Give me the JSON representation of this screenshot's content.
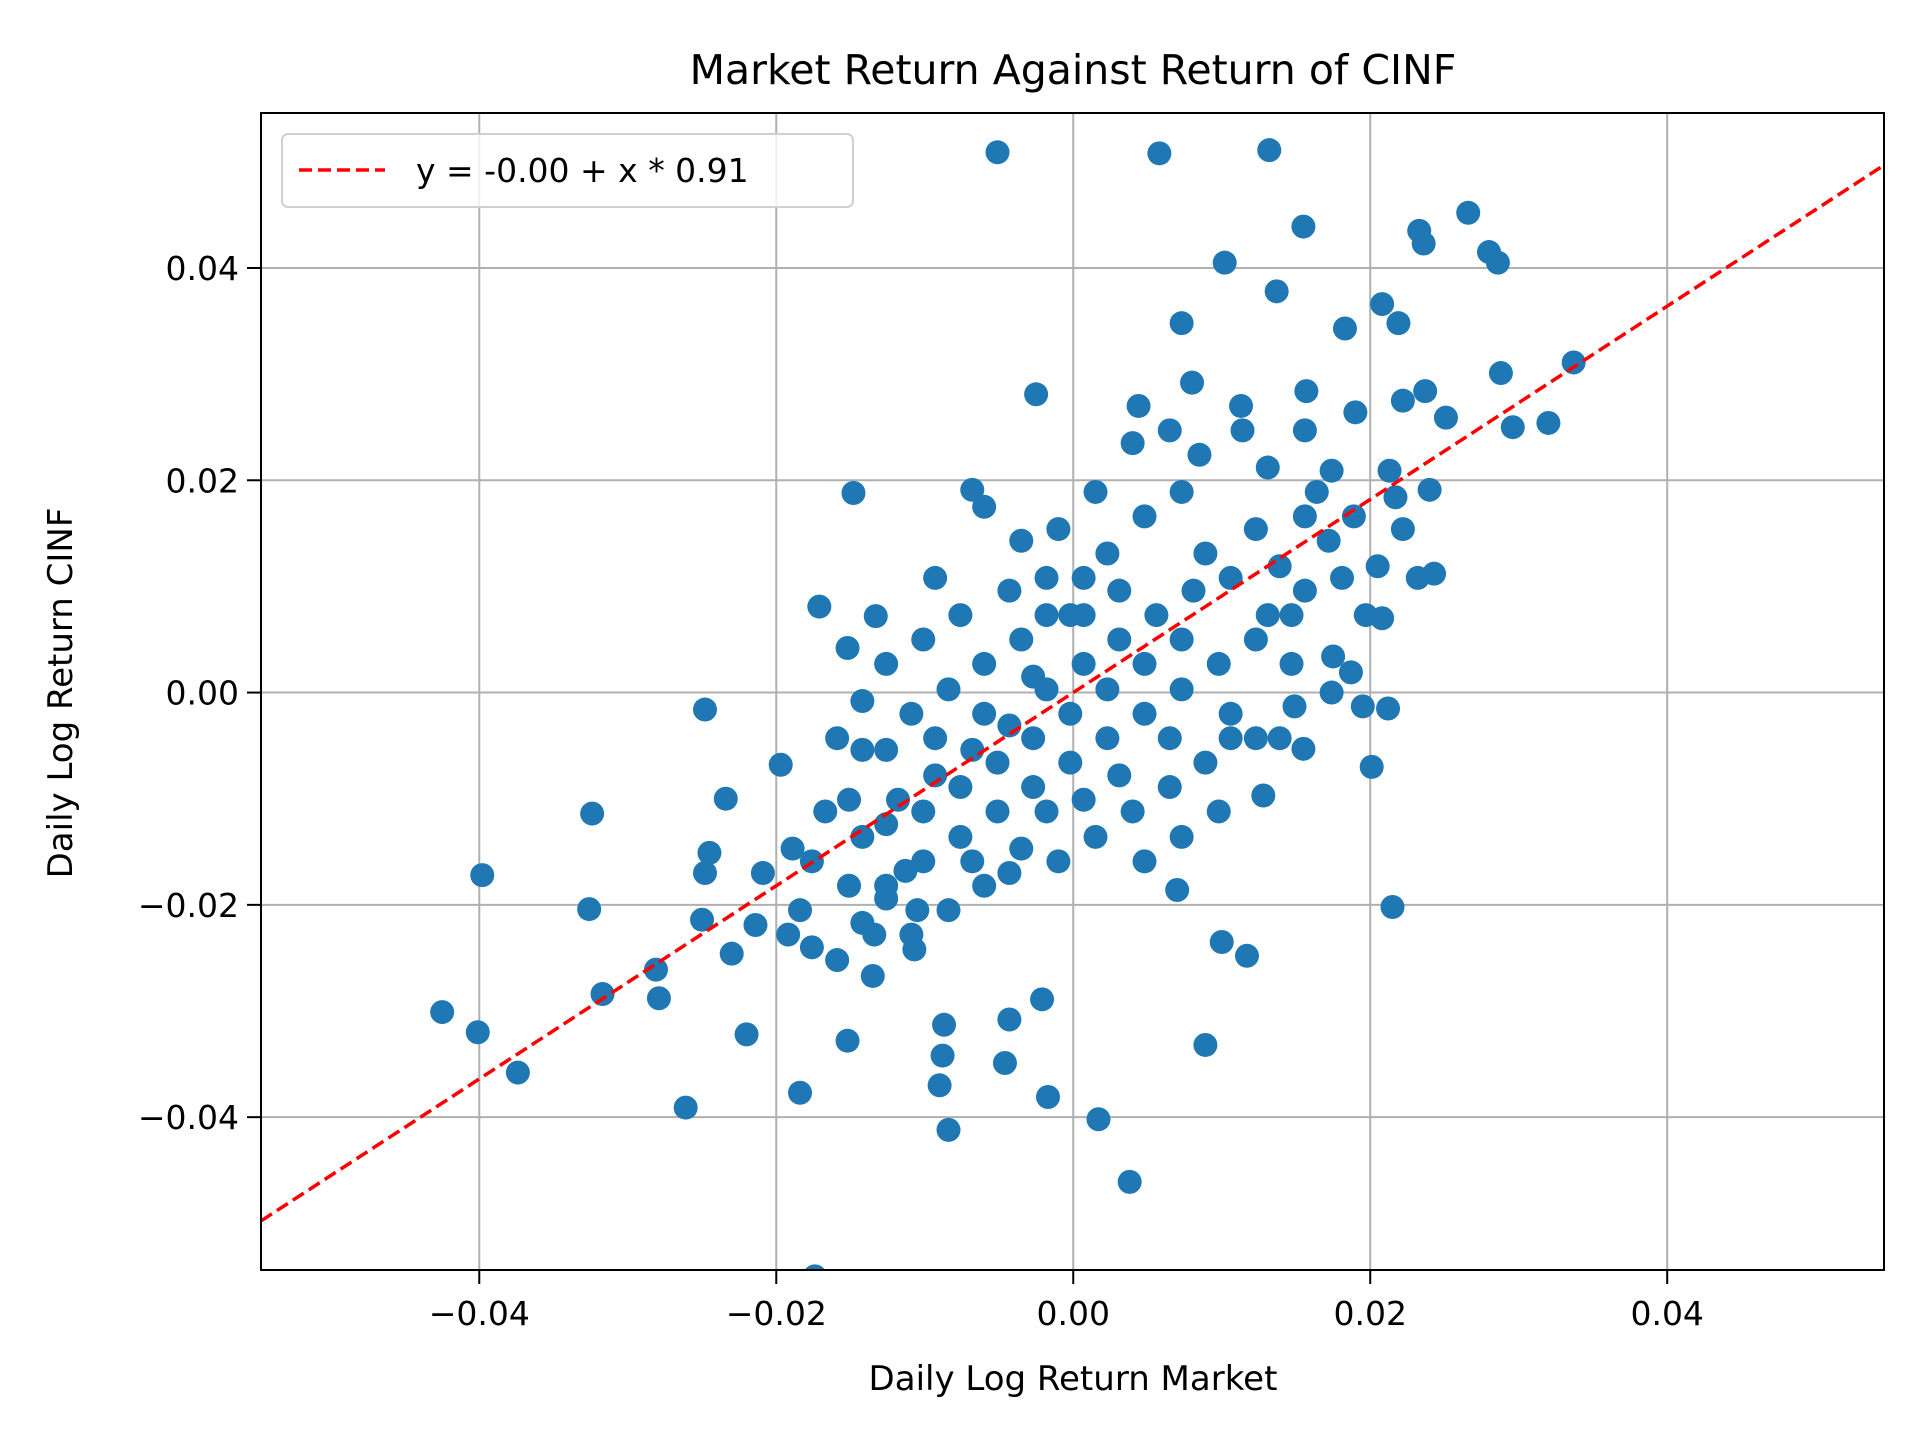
{
  "chart_data": {
    "type": "scatter",
    "title": "Market Return Against Return of CINF",
    "xlabel": "Daily Log Return Market",
    "ylabel": "Daily Log Return CINF",
    "xlim": [
      -0.0547,
      0.0546
    ],
    "ylim": [
      -0.0544,
      0.0546
    ],
    "xticks": [
      -0.04,
      -0.02,
      0.0,
      0.02,
      0.04
    ],
    "xtick_labels": [
      "−0.04",
      "−0.02",
      "0.00",
      "0.02",
      "0.04"
    ],
    "yticks": [
      -0.04,
      -0.02,
      0.0,
      0.02,
      0.04
    ],
    "ytick_labels": [
      "−0.04",
      "−0.02",
      "0.00",
      "0.02",
      "0.04"
    ],
    "grid": true,
    "legend": {
      "placement": "top-left",
      "entries": [
        "y = -0.00 + x * 0.91"
      ]
    },
    "colors": {
      "points": "#1f77b4",
      "fit_line": "#ff0000"
    },
    "fit_line": {
      "intercept": 0.0,
      "slope": 0.91,
      "style": "dashed"
    },
    "points": [
      [
        -0.0051,
        0.0509
      ],
      [
        0.0058,
        0.0508
      ],
      [
        0.0132,
        0.0511
      ],
      [
        0.0155,
        0.0439
      ],
      [
        0.0266,
        0.0452
      ],
      [
        0.0233,
        0.0435
      ],
      [
        0.0236,
        0.0423
      ],
      [
        0.028,
        0.0415
      ],
      [
        0.0286,
        0.0405
      ],
      [
        0.0102,
        0.0405
      ],
      [
        0.0137,
        0.0378
      ],
      [
        0.0208,
        0.0366
      ],
      [
        0.0219,
        0.0348
      ],
      [
        0.0183,
        0.0343
      ],
      [
        0.0073,
        0.0348
      ],
      [
        0.0337,
        0.0311
      ],
      [
        0.0288,
        0.0301
      ],
      [
        0.0296,
        0.025
      ],
      [
        0.032,
        0.0254
      ],
      [
        0.0251,
        0.0259
      ],
      [
        0.0237,
        0.0284
      ],
      [
        0.0222,
        0.0275
      ],
      [
        0.019,
        0.0264
      ],
      [
        0.0157,
        0.0284
      ],
      [
        0.008,
        0.0292
      ],
      [
        -0.0025,
        0.0281
      ],
      [
        0.0044,
        0.027
      ],
      [
        0.0113,
        0.027
      ],
      [
        0.0213,
        0.0209
      ],
      [
        0.024,
        0.0191
      ],
      [
        0.0217,
        0.0184
      ],
      [
        0.0174,
        0.0209
      ],
      [
        -0.0148,
        0.0188
      ],
      [
        -0.0171,
        0.0081
      ],
      [
        -0.0152,
        0.0042
      ],
      [
        -0.0248,
        -0.0016
      ],
      [
        -0.0197,
        -0.0068
      ],
      [
        -0.0234,
        -0.01
      ],
      [
        -0.0324,
        -0.0114
      ],
      [
        -0.0398,
        -0.0172
      ],
      [
        -0.0326,
        -0.0204
      ],
      [
        -0.0425,
        -0.0301
      ],
      [
        -0.0401,
        -0.032
      ],
      [
        -0.0374,
        -0.0358
      ],
      [
        -0.0317,
        -0.0284
      ],
      [
        -0.0281,
        -0.0261
      ],
      [
        -0.0279,
        -0.0288
      ],
      [
        -0.0261,
        -0.0391
      ],
      [
        -0.022,
        -0.0322
      ],
      [
        -0.0184,
        -0.0377
      ],
      [
        -0.0174,
        -0.055
      ],
      [
        -0.0152,
        -0.0328
      ],
      [
        -0.0084,
        -0.0412
      ],
      [
        -0.009,
        -0.037
      ],
      [
        -0.0088,
        -0.0342
      ],
      [
        -0.0087,
        -0.0313
      ],
      [
        -0.0046,
        -0.0349
      ],
      [
        -0.0043,
        -0.0308
      ],
      [
        -0.0017,
        -0.0381
      ],
      [
        0.0017,
        -0.0402
      ],
      [
        0.0038,
        -0.0461
      ],
      [
        0.0089,
        -0.0332
      ],
      [
        -0.0021,
        -0.0289
      ],
      [
        0.01,
        -0.0235
      ],
      [
        0.0117,
        -0.0248
      ],
      [
        0.0215,
        -0.0202
      ],
      [
        0.007,
        -0.0186
      ],
      [
        0.0201,
        -0.007
      ],
      [
        0.0155,
        -0.0053
      ],
      [
        0.0128,
        -0.0097
      ],
      [
        0.0149,
        -0.0013
      ],
      [
        0.0195,
        -0.0013
      ],
      [
        0.0212,
        -0.0015
      ],
      [
        0.0174,
        0.0
      ],
      [
        0.0187,
        0.0019
      ],
      [
        0.0208,
        0.007
      ],
      [
        0.0243,
        0.0112
      ],
      [
        0.0232,
        0.0108
      ],
      [
        0.0175,
        0.0034
      ],
      [
        -0.025,
        -0.0214
      ],
      [
        -0.023,
        -0.0246
      ],
      [
        -0.0245,
        -0.0151
      ],
      [
        -0.0248,
        -0.017
      ],
      [
        -0.0214,
        -0.0219
      ],
      [
        -0.0189,
        -0.0147
      ],
      [
        -0.0135,
        -0.0267
      ],
      [
        -0.0113,
        -0.0168
      ],
      [
        -0.0107,
        -0.0242
      ],
      [
        -0.0133,
        0.0072
      ],
      [
        -0.0093,
        0.0108
      ],
      [
        -0.0068,
        0.0191
      ],
      [
        -0.006,
        0.0175
      ],
      [
        -0.0035,
        0.0143
      ],
      [
        -0.0018,
        0.0108
      ],
      [
        -0.0002,
        0.0073
      ],
      [
        0.0023,
        0.0131
      ],
      [
        0.0048,
        0.0166
      ],
      [
        0.0073,
        0.0189
      ],
      [
        0.0089,
        0.0131
      ],
      [
        0.0106,
        0.0108
      ],
      [
        0.0123,
        0.0154
      ],
      [
        0.0139,
        0.0119
      ],
      [
        0.0156,
        0.0166
      ],
      [
        0.0172,
        0.0143
      ],
      [
        0.0147,
        0.0073
      ],
      [
        0.0123,
        0.005
      ],
      [
        0.0098,
        0.0027
      ],
      [
        0.0073,
        0.0003
      ],
      [
        0.0048,
        -0.002
      ],
      [
        0.0023,
        -0.0043
      ],
      [
        -0.0002,
        -0.0066
      ],
      [
        -0.0027,
        -0.0089
      ],
      [
        -0.0051,
        -0.0112
      ],
      [
        -0.0076,
        -0.0136
      ],
      [
        -0.0101,
        -0.0159
      ],
      [
        -0.0126,
        -0.0182
      ],
      [
        -0.0142,
        -0.0136
      ],
      [
        -0.0118,
        -0.0101
      ],
      [
        -0.0093,
        -0.0078
      ],
      [
        -0.0068,
        -0.0054
      ],
      [
        -0.0043,
        -0.0031
      ],
      [
        -0.0018,
        0.0003
      ],
      [
        0.0007,
        0.0027
      ],
      [
        0.0031,
        0.005
      ],
      [
        0.0056,
        0.0073
      ],
      [
        0.0081,
        0.0096
      ],
      [
        0.0106,
        -0.0043
      ],
      [
        0.0089,
        -0.0066
      ],
      [
        0.0065,
        -0.0089
      ],
      [
        0.004,
        -0.0112
      ],
      [
        0.0015,
        -0.0136
      ],
      [
        -0.001,
        -0.0159
      ],
      [
        -0.0035,
        -0.0147
      ],
      [
        -0.006,
        -0.0182
      ],
      [
        -0.0084,
        -0.0205
      ],
      [
        -0.0109,
        -0.0228
      ],
      [
        -0.0134,
        -0.0228
      ],
      [
        -0.0151,
        -0.0182
      ],
      [
        -0.0167,
        -0.0112
      ],
      [
        -0.0142,
        -0.0054
      ],
      [
        -0.0109,
        -0.002
      ],
      [
        -0.0084,
        0.0003
      ],
      [
        -0.006,
        0.0027
      ],
      [
        -0.0035,
        0.005
      ],
      [
        -0.001,
        0.0154
      ],
      [
        0.0015,
        0.0189
      ],
      [
        0.004,
        0.0235
      ],
      [
        0.0065,
        0.0247
      ],
      [
        0.0085,
        0.0224
      ],
      [
        0.0114,
        0.0247
      ],
      [
        0.0131,
        0.0212
      ],
      [
        0.0156,
        0.0247
      ],
      [
        0.0164,
        0.0189
      ],
      [
        0.0189,
        0.0166
      ],
      [
        0.0205,
        0.0119
      ],
      [
        0.0222,
        0.0154
      ],
      [
        0.0197,
        0.0073
      ],
      [
        0.0147,
        0.0027
      ],
      [
        0.0106,
        -0.002
      ],
      [
        0.0065,
        -0.0043
      ],
      [
        0.0023,
        0.0003
      ],
      [
        -0.0002,
        -0.002
      ],
      [
        -0.0027,
        -0.0043
      ],
      [
        -0.0051,
        -0.0066
      ],
      [
        -0.0076,
        -0.0089
      ],
      [
        -0.0101,
        -0.0112
      ],
      [
        -0.0126,
        -0.0124
      ],
      [
        -0.0151,
        -0.0101
      ],
      [
        -0.0176,
        -0.0159
      ],
      [
        -0.0184,
        -0.0205
      ],
      [
        -0.0192,
        -0.0228
      ],
      [
        -0.0209,
        -0.017
      ],
      [
        -0.0176,
        -0.024
      ],
      [
        -0.0159,
        -0.0252
      ],
      [
        -0.0142,
        -0.0217
      ],
      [
        -0.0126,
        -0.0194
      ],
      [
        -0.0105,
        -0.0205
      ],
      [
        -0.0068,
        -0.0159
      ],
      [
        -0.0043,
        -0.017
      ],
      [
        -0.0018,
        -0.0112
      ],
      [
        0.0007,
        -0.0101
      ],
      [
        0.0031,
        -0.0078
      ],
      [
        0.0048,
        -0.0159
      ],
      [
        0.0073,
        -0.0136
      ],
      [
        0.0098,
        -0.0112
      ],
      [
        0.0123,
        -0.0043
      ],
      [
        0.0139,
        -0.0043
      ],
      [
        0.0156,
        0.0096
      ],
      [
        0.0181,
        0.0108
      ],
      [
        0.0131,
        0.0073
      ],
      [
        0.0073,
        0.005
      ],
      [
        0.0048,
        0.0027
      ],
      [
        0.0007,
        0.0108
      ],
      [
        0.0031,
        0.0096
      ],
      [
        -0.0018,
        0.0073
      ],
      [
        -0.0043,
        0.0096
      ],
      [
        -0.0076,
        0.0073
      ],
      [
        -0.0101,
        0.005
      ],
      [
        -0.0126,
        0.0027
      ],
      [
        -0.0142,
        -0.0008
      ],
      [
        -0.0159,
        -0.0043
      ],
      [
        -0.0126,
        -0.0054
      ],
      [
        -0.0093,
        -0.0043
      ],
      [
        -0.006,
        -0.002
      ],
      [
        -0.0027,
        0.0015
      ],
      [
        0.0007,
        0.0073
      ]
    ]
  }
}
